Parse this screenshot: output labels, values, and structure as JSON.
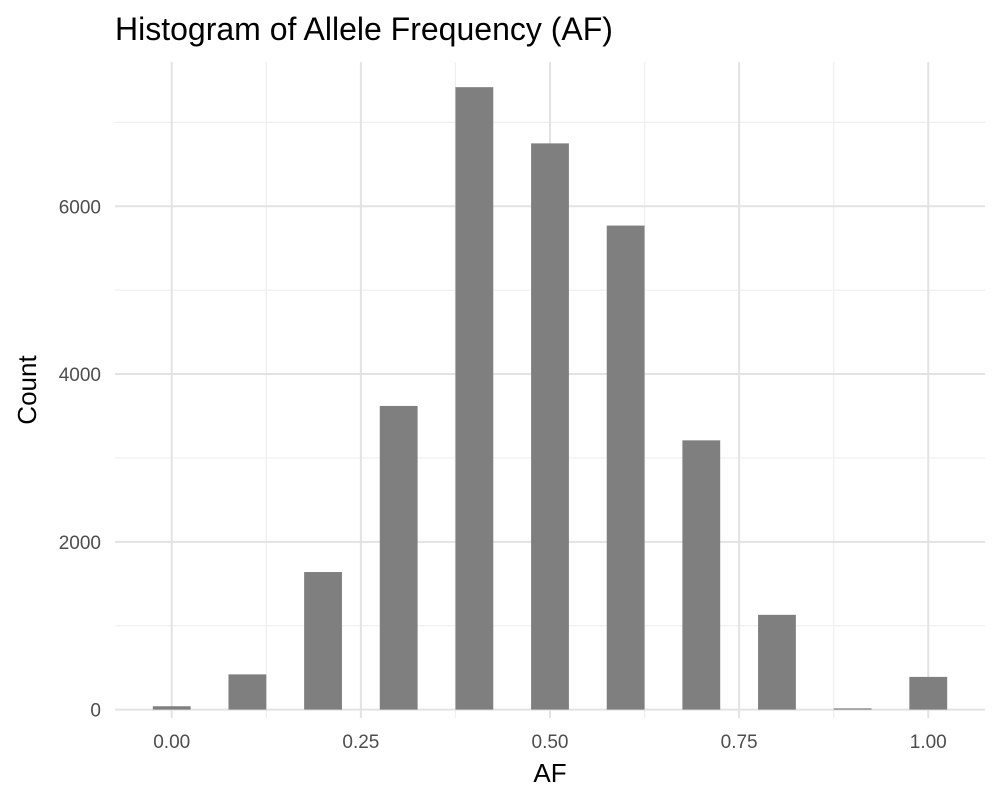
{
  "chart_data": {
    "type": "bar",
    "title": "Histogram of Allele Frequency (AF)",
    "xlabel": "AF",
    "ylabel": "Count",
    "bin_width": 0.05,
    "x": [
      0.0,
      0.1,
      0.2,
      0.3,
      0.4,
      0.5,
      0.6,
      0.7,
      0.8,
      0.9,
      1.0
    ],
    "values": [
      40,
      420,
      1640,
      3620,
      7420,
      6750,
      5770,
      3210,
      1130,
      15,
      390
    ],
    "xlim": [
      -0.075,
      1.075
    ],
    "ylim": [
      -100,
      7720
    ],
    "x_ticks": [
      0.0,
      0.25,
      0.5,
      0.75,
      1.0
    ],
    "x_tick_labels": [
      "0.00",
      "0.25",
      "0.50",
      "0.75",
      "1.00"
    ],
    "x_minor_ticks": [
      0.125,
      0.375,
      0.625,
      0.875
    ],
    "y_ticks": [
      0,
      2000,
      4000,
      6000
    ],
    "y_tick_labels": [
      "0",
      "2000",
      "4000",
      "6000"
    ],
    "y_minor_ticks": [
      1000,
      3000,
      5000,
      7000
    ],
    "grid": true,
    "bar_color": "#7f7f7f"
  }
}
